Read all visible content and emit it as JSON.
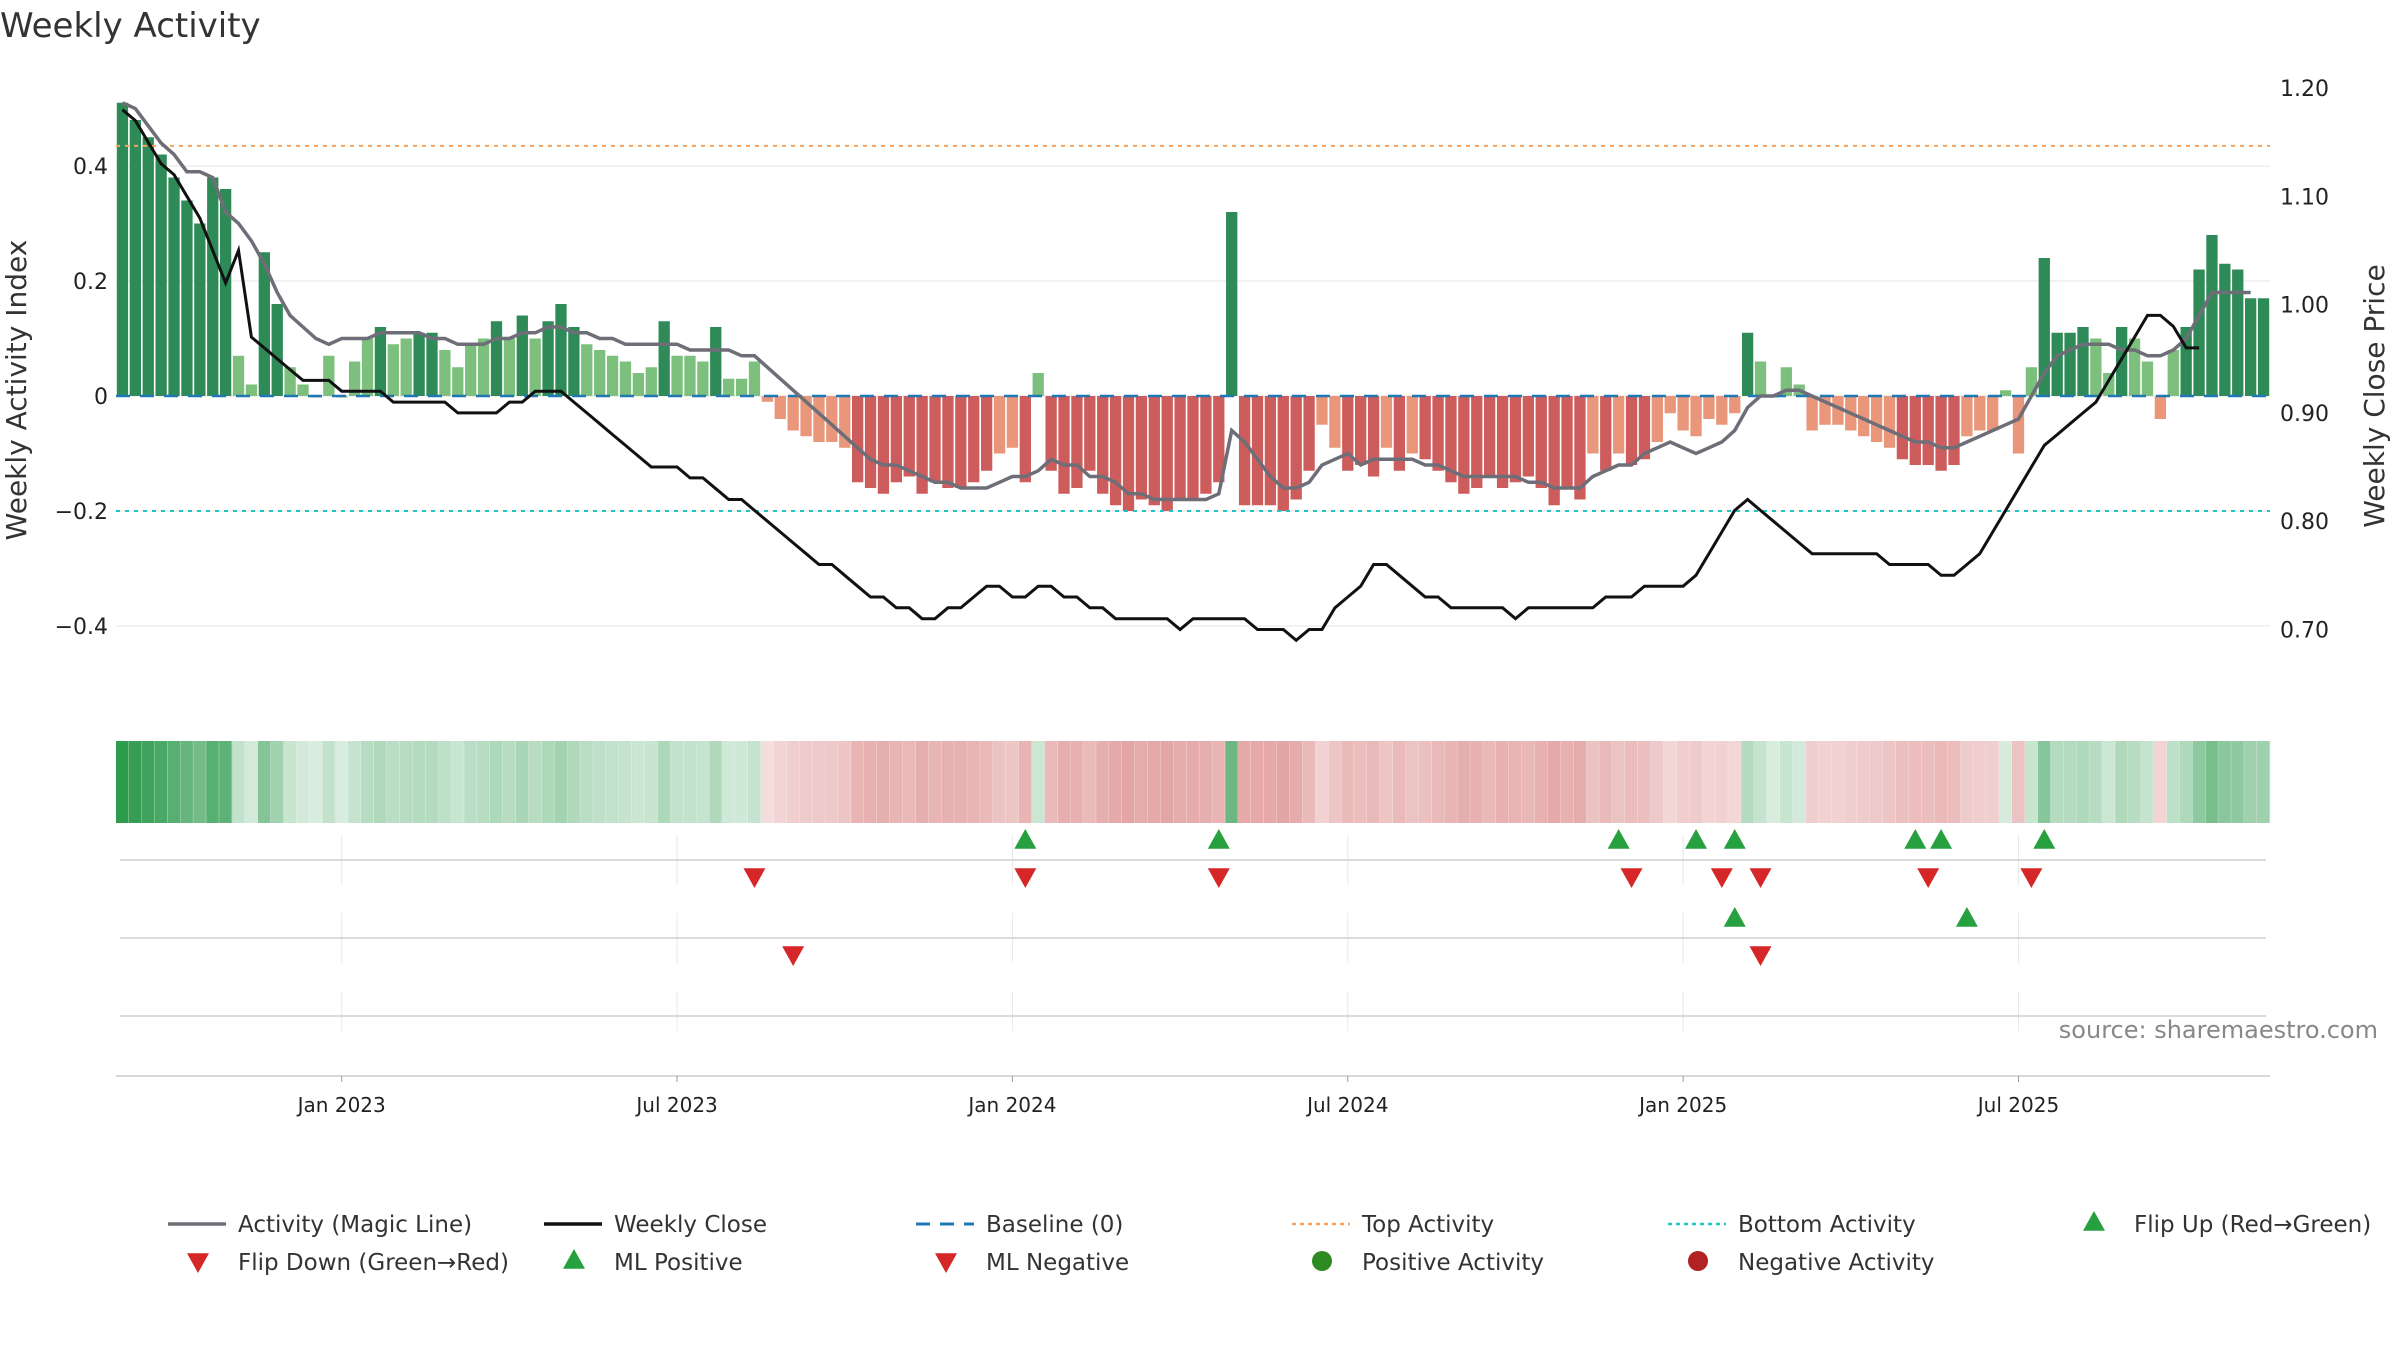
{
  "chart_data": {
    "type": "bar",
    "title": "Weekly Activity",
    "ylabel_left": "Weekly Activity Index",
    "ylabel_right": "Weekly Close Price",
    "ylim_left": [
      -0.55,
      0.55
    ],
    "ylim_right": [
      0.62,
      1.2
    ],
    "left_ticks": [
      {
        "v": 0.4,
        "label": "0.4"
      },
      {
        "v": 0.2,
        "label": "0.2"
      },
      {
        "v": 0,
        "label": "0"
      },
      {
        "v": -0.2,
        "label": "−0.2"
      },
      {
        "v": -0.4,
        "label": "−0.4"
      }
    ],
    "right_ticks": [
      {
        "v": 1.2,
        "label": "1.20"
      },
      {
        "v": 1.1,
        "label": "1.10"
      },
      {
        "v": 1.0,
        "label": "1.00"
      },
      {
        "v": 0.9,
        "label": "0.90"
      },
      {
        "v": 0.8,
        "label": "0.80"
      },
      {
        "v": 0.7,
        "label": "0.70"
      }
    ],
    "x_ticks": [
      {
        "week": 17,
        "label": "Jan 2023"
      },
      {
        "week": 43,
        "label": "Jul 2023"
      },
      {
        "week": 69,
        "label": "Jan 2024"
      },
      {
        "week": 95,
        "label": "Jul 2024"
      },
      {
        "week": 121,
        "label": "Jan 2025"
      },
      {
        "week": 147,
        "label": "Jul 2025"
      }
    ],
    "activity": [
      0.51,
      0.48,
      0.45,
      0.42,
      0.38,
      0.34,
      0.3,
      0.38,
      0.36,
      0.07,
      0.02,
      0.25,
      0.16,
      0.05,
      0.02,
      0.0,
      0.07,
      0.0,
      0.06,
      0.1,
      0.12,
      0.09,
      0.1,
      0.11,
      0.11,
      0.08,
      0.05,
      0.09,
      0.1,
      0.13,
      0.1,
      0.14,
      0.1,
      0.13,
      0.16,
      0.12,
      0.09,
      0.08,
      0.07,
      0.06,
      0.04,
      0.05,
      0.13,
      0.07,
      0.07,
      0.06,
      0.12,
      0.03,
      0.03,
      0.06,
      -0.01,
      -0.04,
      -0.06,
      -0.07,
      -0.08,
      -0.08,
      -0.09,
      -0.15,
      -0.16,
      -0.17,
      -0.15,
      -0.14,
      -0.17,
      -0.15,
      -0.16,
      -0.16,
      -0.15,
      -0.13,
      -0.1,
      -0.09,
      -0.15,
      0.04,
      -0.13,
      -0.17,
      -0.16,
      -0.13,
      -0.17,
      -0.19,
      -0.2,
      -0.18,
      -0.19,
      -0.2,
      -0.18,
      -0.18,
      -0.17,
      -0.15,
      0.32,
      -0.19,
      -0.19,
      -0.19,
      -0.2,
      -0.18,
      -0.13,
      -0.05,
      -0.09,
      -0.13,
      -0.12,
      -0.14,
      -0.09,
      -0.13,
      -0.1,
      -0.11,
      -0.13,
      -0.15,
      -0.17,
      -0.16,
      -0.14,
      -0.16,
      -0.15,
      -0.14,
      -0.16,
      -0.19,
      -0.16,
      -0.18,
      -0.1,
      -0.13,
      -0.1,
      -0.12,
      -0.11,
      -0.08,
      -0.03,
      -0.06,
      -0.07,
      -0.04,
      -0.05,
      -0.03,
      0.11,
      0.06,
      0.0,
      0.05,
      0.02,
      -0.06,
      -0.05,
      -0.05,
      -0.06,
      -0.07,
      -0.08,
      -0.09,
      -0.11,
      -0.12,
      -0.12,
      -0.13,
      -0.12,
      -0.07,
      -0.06,
      -0.06,
      0.01,
      -0.1,
      0.05,
      0.24,
      0.11,
      0.11,
      0.12,
      0.1,
      0.04,
      0.12,
      0.1,
      0.06,
      -0.04,
      0.08,
      0.12,
      0.22,
      0.28,
      0.23,
      0.22,
      0.17,
      0.17
    ],
    "magic_line": [
      0.51,
      0.5,
      0.47,
      0.44,
      0.42,
      0.39,
      0.39,
      0.38,
      0.32,
      0.3,
      0.27,
      0.23,
      0.18,
      0.14,
      0.12,
      0.1,
      0.09,
      0.1,
      0.1,
      0.1,
      0.11,
      0.11,
      0.11,
      0.11,
      0.1,
      0.1,
      0.09,
      0.09,
      0.09,
      0.1,
      0.1,
      0.11,
      0.11,
      0.12,
      0.12,
      0.11,
      0.11,
      0.1,
      0.1,
      0.09,
      0.09,
      0.09,
      0.09,
      0.09,
      0.08,
      0.08,
      0.08,
      0.08,
      0.07,
      0.07,
      0.05,
      0.03,
      0.01,
      -0.01,
      -0.03,
      -0.05,
      -0.07,
      -0.09,
      -0.11,
      -0.12,
      -0.12,
      -0.13,
      -0.14,
      -0.15,
      -0.15,
      -0.16,
      -0.16,
      -0.16,
      -0.15,
      -0.14,
      -0.14,
      -0.13,
      -0.11,
      -0.12,
      -0.12,
      -0.14,
      -0.14,
      -0.15,
      -0.17,
      -0.17,
      -0.18,
      -0.18,
      -0.18,
      -0.18,
      -0.18,
      -0.17,
      -0.06,
      -0.08,
      -0.11,
      -0.14,
      -0.16,
      -0.16,
      -0.15,
      -0.12,
      -0.11,
      -0.1,
      -0.12,
      -0.11,
      -0.11,
      -0.11,
      -0.11,
      -0.12,
      -0.12,
      -0.13,
      -0.14,
      -0.14,
      -0.14,
      -0.14,
      -0.14,
      -0.15,
      -0.15,
      -0.16,
      -0.16,
      -0.16,
      -0.14,
      -0.13,
      -0.12,
      -0.12,
      -0.1,
      -0.09,
      -0.08,
      -0.09,
      -0.1,
      -0.09,
      -0.08,
      -0.06,
      -0.02,
      0.0,
      0.0,
      0.01,
      0.01,
      0.0,
      -0.01,
      -0.02,
      -0.03,
      -0.04,
      -0.05,
      -0.06,
      -0.07,
      -0.08,
      -0.08,
      -0.09,
      -0.09,
      -0.08,
      -0.07,
      -0.06,
      -0.05,
      -0.04,
      0.0,
      0.04,
      0.07,
      0.08,
      0.09,
      0.09,
      0.09,
      0.08,
      0.08,
      0.07,
      0.07,
      0.08,
      0.1,
      0.14,
      0.18,
      0.18,
      0.18,
      0.18
    ],
    "weekly_close": [
      1.18,
      1.17,
      1.15,
      1.13,
      1.12,
      1.1,
      1.08,
      1.05,
      1.02,
      1.05,
      0.97,
      0.96,
      0.95,
      0.94,
      0.93,
      0.93,
      0.93,
      0.92,
      0.92,
      0.92,
      0.92,
      0.91,
      0.91,
      0.91,
      0.91,
      0.91,
      0.9,
      0.9,
      0.9,
      0.9,
      0.91,
      0.91,
      0.92,
      0.92,
      0.92,
      0.91,
      0.9,
      0.89,
      0.88,
      0.87,
      0.86,
      0.85,
      0.85,
      0.85,
      0.84,
      0.84,
      0.83,
      0.82,
      0.82,
      0.81,
      0.8,
      0.79,
      0.78,
      0.77,
      0.76,
      0.76,
      0.75,
      0.74,
      0.73,
      0.73,
      0.72,
      0.72,
      0.71,
      0.71,
      0.72,
      0.72,
      0.73,
      0.74,
      0.74,
      0.73,
      0.73,
      0.74,
      0.74,
      0.73,
      0.73,
      0.72,
      0.72,
      0.71,
      0.71,
      0.71,
      0.71,
      0.71,
      0.7,
      0.71,
      0.71,
      0.71,
      0.71,
      0.71,
      0.7,
      0.7,
      0.7,
      0.69,
      0.7,
      0.7,
      0.72,
      0.73,
      0.74,
      0.76,
      0.76,
      0.75,
      0.74,
      0.73,
      0.73,
      0.72,
      0.72,
      0.72,
      0.72,
      0.72,
      0.71,
      0.72,
      0.72,
      0.72,
      0.72,
      0.72,
      0.72,
      0.73,
      0.73,
      0.73,
      0.74,
      0.74,
      0.74,
      0.74,
      0.75,
      0.77,
      0.79,
      0.81,
      0.82,
      0.81,
      0.8,
      0.79,
      0.78,
      0.77,
      0.77,
      0.77,
      0.77,
      0.77,
      0.77,
      0.76,
      0.76,
      0.76,
      0.76,
      0.75,
      0.75,
      0.76,
      0.77,
      0.79,
      0.81,
      0.83,
      0.85,
      0.87,
      0.88,
      0.89,
      0.9,
      0.91,
      0.93,
      0.95,
      0.97,
      0.99,
      0.99,
      0.98,
      0.96,
      0.96
    ],
    "top_activity": 0.435,
    "bottom_activity": -0.2,
    "baseline": 0,
    "events": {
      "flip_up_weeks": [
        70,
        85,
        116,
        122,
        125,
        139,
        141,
        149
      ],
      "flip_down_weeks": [
        49,
        70,
        85,
        117,
        124,
        127,
        140,
        148
      ],
      "ml_positive_weeks": [
        125,
        143
      ],
      "ml_negative_weeks": [
        52,
        127
      ]
    },
    "legend": [
      {
        "key": "magic_line",
        "label": "Activity (Magic Line)",
        "color": "#6e6e78"
      },
      {
        "key": "weekly_close",
        "label": "Weekly Close",
        "color": "#111111"
      },
      {
        "key": "baseline",
        "label": "Baseline (0)",
        "color": "#1f77b4"
      },
      {
        "key": "top_activity",
        "label": "Top Activity",
        "color": "#f4a460"
      },
      {
        "key": "bottom_activity",
        "label": "Bottom Activity",
        "color": "#22c3c3"
      },
      {
        "key": "flip_up",
        "label": "Flip Up (Red→Green)",
        "color": "#27a040"
      },
      {
        "key": "flip_down",
        "label": "Flip Down (Green→Red)",
        "color": "#d62728"
      },
      {
        "key": "ml_positive",
        "label": "ML Positive",
        "color": "#27a040"
      },
      {
        "key": "ml_negative",
        "label": "ML Negative",
        "color": "#d62728"
      },
      {
        "key": "positive_activity",
        "label": "Positive Activity",
        "color": "#2e8b22"
      },
      {
        "key": "negative_activity",
        "label": "Negative Activity",
        "color": "#b22222"
      }
    ],
    "source": "source: sharemaestro.com"
  }
}
